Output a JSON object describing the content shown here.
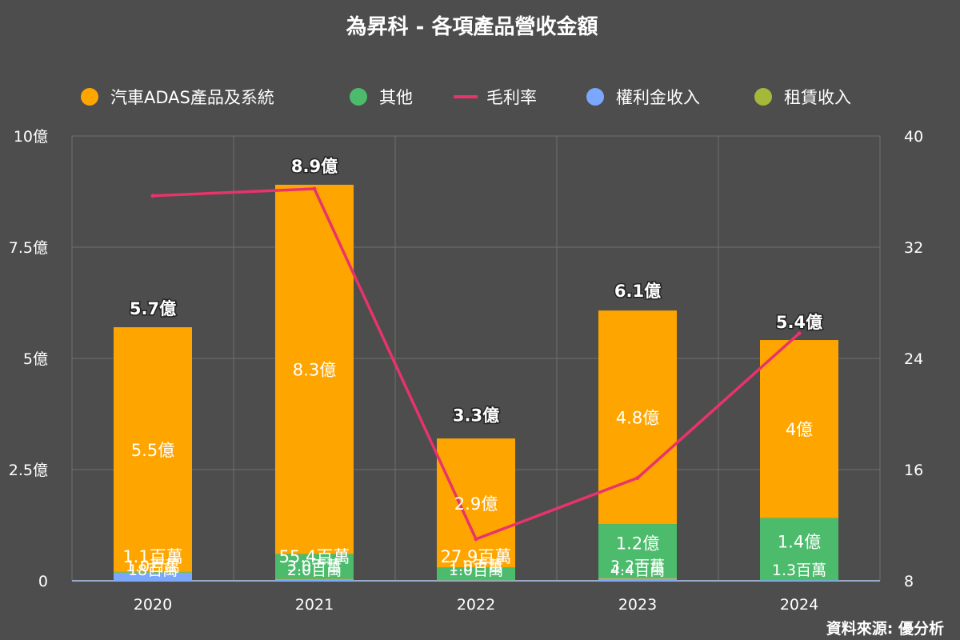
{
  "chart_data": {
    "type": "bar",
    "title": "為昇科 - 各項產品營收金額",
    "categories": [
      "2020",
      "2021",
      "2022",
      "2023",
      "2024"
    ],
    "legend": [
      "汽車ADAS產品及系統",
      "其他",
      "毛利率",
      "權利金收入",
      "租賃收入"
    ],
    "legend_position": "top",
    "grid": true,
    "y_left": {
      "ticks": [
        "0",
        "2.5億",
        "5億",
        "7.5億",
        "10億"
      ],
      "min": 0,
      "max": 10,
      "unit": "億"
    },
    "y_right": {
      "ticks": [
        "8",
        "16",
        "24",
        "32",
        "40"
      ],
      "min": 8,
      "max": 40
    },
    "series": [
      {
        "name": "汽車ADAS產品及系統",
        "kind": "bar",
        "color": "#ffa500",
        "values": [
          5.5,
          8.3,
          2.9,
          4.8,
          4.0
        ],
        "labels": [
          "5.5億",
          "8.3億",
          "2.9億",
          "4.8億",
          "4億"
        ]
      },
      {
        "name": "其他",
        "kind": "bar",
        "color": "#4cbb6c",
        "values": [
          0.011,
          0.554,
          0.279,
          1.2,
          1.4
        ],
        "labels": [
          "1.1百萬",
          "55.4百萬",
          "27.9百萬",
          "1.2億",
          "1.4億"
        ]
      },
      {
        "name": "權利金收入",
        "kind": "bar",
        "color": "#7ba7ff",
        "values": [
          0.18,
          0.02,
          0.01,
          0.044,
          0.013
        ],
        "labels": [
          "18百萬",
          "2.0百萬",
          "1.0百萬",
          "4.4百萬",
          "1.3百萬"
        ]
      },
      {
        "name": "租賃收入",
        "kind": "bar",
        "color": "#a5b83a",
        "values": [
          0.01,
          0.03,
          0.01,
          0.032,
          0.0
        ],
        "labels": [
          "1.0百萬",
          "3.0百萬",
          "1.0百萬",
          "3.2百萬",
          ""
        ]
      },
      {
        "name": "毛利率",
        "kind": "line",
        "axis": "right",
        "color": "#e8336b",
        "values": [
          35.7,
          36.2,
          11.0,
          15.4,
          25.8
        ]
      }
    ],
    "totals": [
      5.7,
      8.9,
      3.3,
      6.1,
      5.4
    ],
    "total_labels": [
      "5.7億",
      "8.9億",
      "3.3億",
      "6.1億",
      "5.4億"
    ]
  },
  "source": "資料來源: 優分析"
}
